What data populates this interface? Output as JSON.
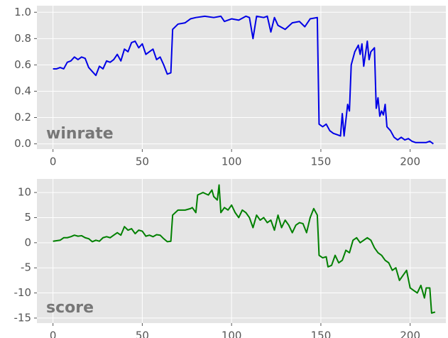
{
  "chart_data": [
    {
      "type": "line",
      "annotation": "winrate",
      "color": "#0000e6",
      "grid": true,
      "xlim": [
        -9,
        220
      ],
      "ylim": [
        -0.04,
        1.05
      ],
      "xticks": [
        0,
        50,
        100,
        150,
        200
      ],
      "yticks": [
        {
          "value": 0,
          "label": "0.0"
        },
        0.2,
        0.4,
        0.6,
        0.8,
        {
          "value": 1,
          "label": "1.0"
        }
      ],
      "x": [
        0,
        2,
        4,
        6,
        8,
        10,
        12,
        14,
        16,
        18,
        20,
        22,
        24,
        26,
        28,
        30,
        32,
        34,
        36,
        38,
        40,
        42,
        44,
        46,
        48,
        50,
        52,
        54,
        56,
        58,
        60,
        62,
        64,
        66,
        67,
        70,
        74,
        77,
        80,
        85,
        90,
        94,
        96,
        100,
        104,
        108,
        110,
        112,
        114,
        118,
        120,
        122,
        124,
        126,
        130,
        134,
        138,
        141,
        144,
        148,
        149,
        151,
        153,
        155,
        157,
        159,
        161,
        162,
        163,
        165,
        166,
        167,
        169,
        171,
        172,
        173,
        174,
        176,
        177,
        178,
        180,
        181,
        182,
        183,
        184,
        185,
        186,
        187,
        189,
        191,
        193,
        195,
        197,
        199,
        201,
        203,
        207,
        209,
        211,
        213
      ],
      "values": [
        0.57,
        0.57,
        0.58,
        0.57,
        0.62,
        0.63,
        0.66,
        0.64,
        0.66,
        0.65,
        0.58,
        0.55,
        0.52,
        0.59,
        0.57,
        0.63,
        0.62,
        0.64,
        0.68,
        0.63,
        0.72,
        0.7,
        0.77,
        0.78,
        0.73,
        0.76,
        0.68,
        0.7,
        0.72,
        0.64,
        0.66,
        0.6,
        0.53,
        0.54,
        0.87,
        0.91,
        0.92,
        0.95,
        0.96,
        0.97,
        0.96,
        0.97,
        0.93,
        0.95,
        0.94,
        0.97,
        0.96,
        0.8,
        0.97,
        0.96,
        0.97,
        0.85,
        0.96,
        0.9,
        0.87,
        0.92,
        0.93,
        0.89,
        0.95,
        0.96,
        0.15,
        0.13,
        0.15,
        0.1,
        0.08,
        0.07,
        0.06,
        0.23,
        0.06,
        0.3,
        0.25,
        0.6,
        0.7,
        0.75,
        0.68,
        0.76,
        0.59,
        0.78,
        0.64,
        0.7,
        0.73,
        0.27,
        0.35,
        0.21,
        0.25,
        0.22,
        0.3,
        0.13,
        0.1,
        0.05,
        0.03,
        0.05,
        0.03,
        0.04,
        0.02,
        0.01,
        0.01,
        0.01,
        0.02,
        0.0
      ]
    },
    {
      "type": "line",
      "annotation": "score",
      "color": "#008000",
      "grid": true,
      "xlim": [
        -9,
        220
      ],
      "ylim": [
        -16,
        12.7
      ],
      "xticks": [
        0,
        50,
        100,
        150,
        200
      ],
      "yticks": [
        -15,
        -10,
        -5,
        0,
        5,
        10
      ],
      "x": [
        0,
        2,
        4,
        6,
        8,
        10,
        12,
        14,
        16,
        18,
        20,
        22,
        24,
        26,
        28,
        30,
        32,
        34,
        36,
        38,
        40,
        42,
        44,
        46,
        48,
        50,
        52,
        54,
        56,
        58,
        60,
        62,
        64,
        66,
        67,
        70,
        74,
        77,
        78,
        80,
        81,
        84,
        87,
        89,
        90,
        92,
        93,
        94,
        96,
        98,
        100,
        102,
        104,
        106,
        108,
        110,
        112,
        114,
        116,
        118,
        120,
        122,
        124,
        126,
        128,
        130,
        132,
        134,
        136,
        138,
        140,
        142,
        144,
        146,
        148,
        149,
        151,
        153,
        154,
        156,
        158,
        160,
        162,
        164,
        166,
        168,
        170,
        172,
        174,
        176,
        178,
        180,
        182,
        184,
        186,
        188,
        190,
        192,
        194,
        196,
        198,
        200,
        202,
        204,
        206,
        208,
        209,
        211,
        212,
        214
      ],
      "values": [
        0.3,
        0.4,
        0.5,
        1.0,
        1.0,
        1.2,
        1.5,
        1.3,
        1.4,
        1.0,
        0.8,
        0.2,
        0.5,
        0.3,
        1.0,
        1.2,
        1.0,
        1.5,
        2.0,
        1.5,
        3.2,
        2.5,
        2.8,
        1.8,
        2.5,
        2.3,
        1.3,
        1.5,
        1.2,
        1.6,
        1.5,
        0.8,
        0.2,
        0.3,
        5.5,
        6.5,
        6.5,
        6.8,
        7.0,
        6.0,
        9.5,
        10,
        9.5,
        10.5,
        9.2,
        8.5,
        11.5,
        6.0,
        7.0,
        6.5,
        7.5,
        6.0,
        5.0,
        6.5,
        6.0,
        5.0,
        3.0,
        5.5,
        4.5,
        5.0,
        4.0,
        4.5,
        2.5,
        5.5,
        3.0,
        4.5,
        3.5,
        2.0,
        3.5,
        4.0,
        3.8,
        2.0,
        5.0,
        6.8,
        5.5,
        -2.5,
        -3.0,
        -2.8,
        -4.8,
        -4.5,
        -2.5,
        -4.0,
        -3.5,
        -1.5,
        -2.0,
        0.5,
        1.0,
        0.0,
        0.5,
        1.0,
        0.5,
        -1.0,
        -2.0,
        -2.5,
        -3.5,
        -4.0,
        -5.5,
        -5.0,
        -7.5,
        -6.5,
        -5.5,
        -9.0,
        -9.5,
        -10.0,
        -8.5,
        -11.0,
        -9.0,
        -9.0,
        -14.0,
        -13.8
      ]
    }
  ]
}
